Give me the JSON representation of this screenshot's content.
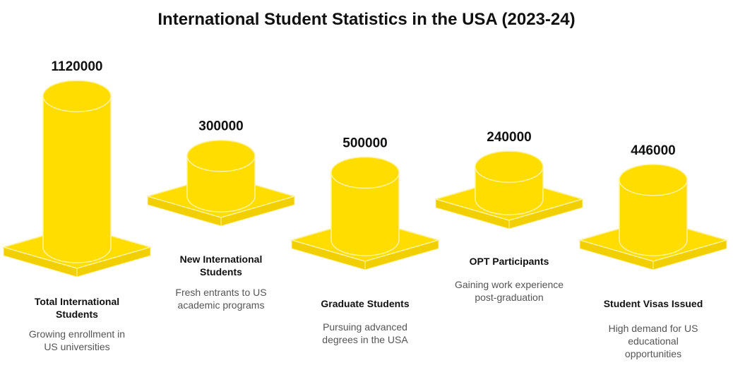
{
  "title": "International Student Statistics in the USA (2023-24)",
  "colors": {
    "fill": "#FFDD00",
    "edge": "#F2CF00",
    "outline": "#FFF2A0"
  },
  "chart_data": {
    "type": "bar",
    "title": "International Student Statistics in the USA (2023-24)",
    "categories": [
      "Total International Students",
      "New International Students",
      "Graduate Students",
      "OPT Participants",
      "Student Visas Issued"
    ],
    "values": [
      1120000,
      300000,
      500000,
      240000,
      446000
    ],
    "value_labels": [
      "1120000",
      "300000",
      "500000",
      "240000",
      "446000"
    ],
    "descriptions": [
      "Growing enrollment in US universities",
      "Fresh entrants to US academic programs",
      "Pursuing advanced degrees in the USA",
      "Gaining work experience post-graduation",
      "High demand for US educational opportunities"
    ],
    "xlabel": "",
    "ylabel": "",
    "grid": false
  }
}
